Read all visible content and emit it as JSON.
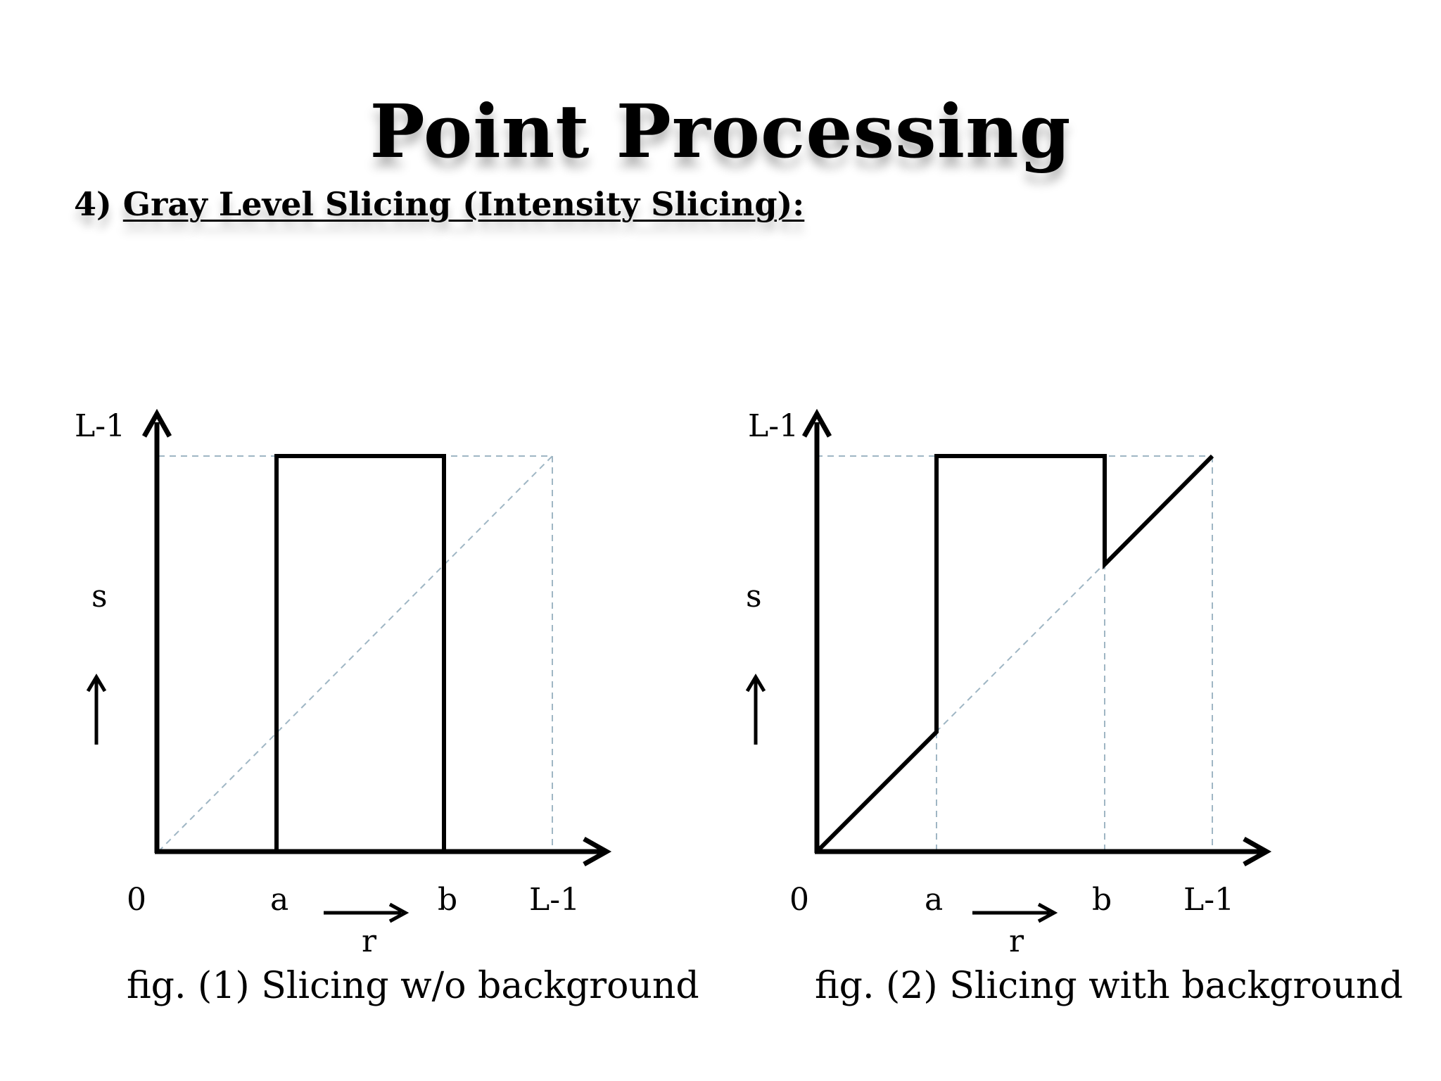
{
  "slide": {
    "title": "Point Processing",
    "subtitle_number": "4)",
    "subtitle": "Gray Level Slicing (Intensity Slicing):"
  },
  "figures": [
    {
      "y_top_label": "L-1",
      "y_label": "s",
      "x_origin_label": "0",
      "x_a_label": "a",
      "x_b_label": "b",
      "x_end_label": "L-1",
      "x_label": "r",
      "caption": "fig. (1) Slicing w/o background"
    },
    {
      "y_top_label": "L-1",
      "y_label": "s",
      "x_origin_label": "0",
      "x_a_label": "a",
      "x_b_label": "b",
      "x_end_label": "L-1",
      "x_label": "r",
      "caption": "fig. (2) Slicing with background"
    }
  ]
}
